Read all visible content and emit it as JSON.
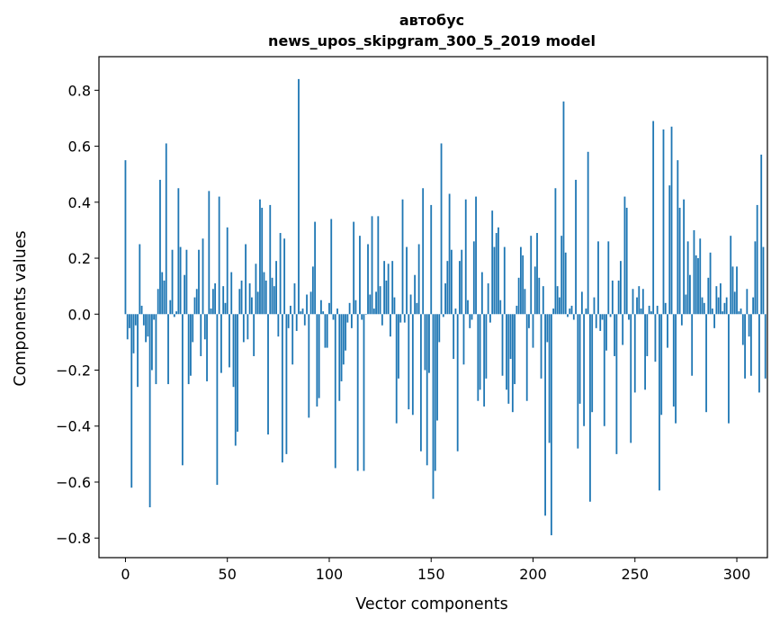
{
  "chart_data": {
    "type": "bar",
    "title_line1": "автобус",
    "title_line2": "news_upos_skipgram_300_5_2019 model",
    "xlabel": "Vector components",
    "ylabel": "Components values",
    "xlim": [
      -13,
      315
    ],
    "ylim": [
      -0.87,
      0.92
    ],
    "xticks": [
      0,
      50,
      100,
      150,
      200,
      250,
      300
    ],
    "yticks": [
      -0.8,
      -0.6,
      -0.4,
      -0.2,
      0.0,
      0.2,
      0.4,
      0.6,
      0.8
    ],
    "bar_color": "#1f77b4",
    "grid": false,
    "values": [
      0.55,
      -0.09,
      -0.05,
      -0.62,
      -0.14,
      -0.04,
      -0.26,
      0.25,
      0.03,
      -0.04,
      -0.1,
      -0.08,
      -0.69,
      -0.2,
      -0.02,
      -0.25,
      0.09,
      0.48,
      0.15,
      0.12,
      0.61,
      -0.25,
      0.05,
      0.23,
      -0.01,
      0.01,
      0.45,
      0.24,
      -0.54,
      0.14,
      0.23,
      -0.25,
      -0.22,
      -0.1,
      0.06,
      0.09,
      0.23,
      -0.15,
      0.27,
      -0.09,
      -0.24,
      0.44,
      0.02,
      0.09,
      0.11,
      -0.61,
      0.42,
      -0.21,
      0.1,
      0.04,
      0.31,
      -0.19,
      0.15,
      -0.26,
      -0.47,
      -0.42,
      0.09,
      0.12,
      -0.1,
      0.25,
      -0.09,
      0.11,
      0.06,
      -0.15,
      0.18,
      0.08,
      0.41,
      0.38,
      0.15,
      0.12,
      -0.43,
      0.39,
      0.13,
      0.1,
      0.19,
      -0.08,
      0.29,
      -0.53,
      0.27,
      -0.5,
      -0.05,
      0.03,
      -0.18,
      0.11,
      -0.06,
      0.84,
      0.01,
      0.02,
      -0.04,
      0.07,
      -0.37,
      0.08,
      0.17,
      0.33,
      -0.33,
      -0.3,
      0.05,
      0.01,
      -0.12,
      -0.12,
      0.04,
      0.34,
      -0.02,
      -0.55,
      0.02,
      -0.31,
      -0.24,
      -0.18,
      -0.13,
      -0.03,
      0.04,
      -0.05,
      0.33,
      0.05,
      -0.56,
      0.28,
      -0.02,
      -0.56,
      0.0,
      0.25,
      0.07,
      0.35,
      0.02,
      0.08,
      0.35,
      0.1,
      -0.04,
      0.19,
      0.12,
      0.18,
      -0.08,
      0.19,
      0.06,
      -0.39,
      -0.23,
      -0.03,
      0.41,
      -0.03,
      0.24,
      -0.34,
      0.07,
      -0.36,
      0.14,
      0.04,
      0.25,
      -0.49,
      0.45,
      -0.2,
      -0.54,
      -0.21,
      0.39,
      -0.66,
      -0.56,
      -0.38,
      -0.1,
      0.61,
      -0.01,
      0.11,
      0.19,
      0.43,
      0.23,
      -0.16,
      0.02,
      -0.49,
      0.19,
      0.23,
      -0.18,
      0.41,
      0.05,
      -0.05,
      -0.02,
      0.26,
      0.42,
      -0.31,
      -0.27,
      0.15,
      -0.33,
      -0.23,
      0.11,
      -0.03,
      0.37,
      0.24,
      0.29,
      0.31,
      0.05,
      -0.22,
      0.24,
      -0.27,
      -0.32,
      -0.16,
      -0.35,
      -0.25,
      0.03,
      0.13,
      0.24,
      0.21,
      0.09,
      -0.31,
      -0.05,
      0.28,
      -0.12,
      0.17,
      0.29,
      0.13,
      -0.23,
      0.1,
      -0.72,
      -0.1,
      -0.46,
      -0.79,
      0.02,
      0.45,
      0.1,
      0.06,
      0.28,
      0.76,
      0.22,
      -0.01,
      0.02,
      0.03,
      -0.02,
      0.48,
      -0.48,
      -0.32,
      0.08,
      -0.4,
      0.02,
      0.58,
      -0.67,
      -0.35,
      0.06,
      -0.05,
      0.26,
      -0.06,
      -0.02,
      -0.4,
      -0.13,
      0.26,
      -0.01,
      0.12,
      -0.15,
      -0.5,
      0.12,
      0.19,
      -0.11,
      0.42,
      0.38,
      -0.02,
      -0.46,
      0.09,
      -0.28,
      0.06,
      0.1,
      0.02,
      0.09,
      -0.27,
      -0.15,
      0.03,
      0.01,
      0.69,
      -0.17,
      0.03,
      -0.63,
      -0.36,
      0.66,
      0.04,
      -0.12,
      0.46,
      0.67,
      -0.33,
      -0.39,
      0.55,
      0.38,
      -0.04,
      0.41,
      0.07,
      0.26,
      0.14,
      -0.22,
      0.3,
      0.21,
      0.2,
      0.27,
      0.06,
      0.04,
      -0.35,
      0.13,
      0.22,
      0.02,
      -0.05,
      0.1,
      0.06,
      0.11,
      0.01,
      0.04,
      0.06,
      -0.39,
      0.28,
      0.17,
      0.08,
      0.17,
      0.01,
      0.02,
      -0.11,
      -0.23,
      0.09,
      -0.08,
      -0.22,
      0.06,
      0.26,
      0.39,
      -0.28,
      0.57,
      0.24,
      -0.23
    ]
  }
}
